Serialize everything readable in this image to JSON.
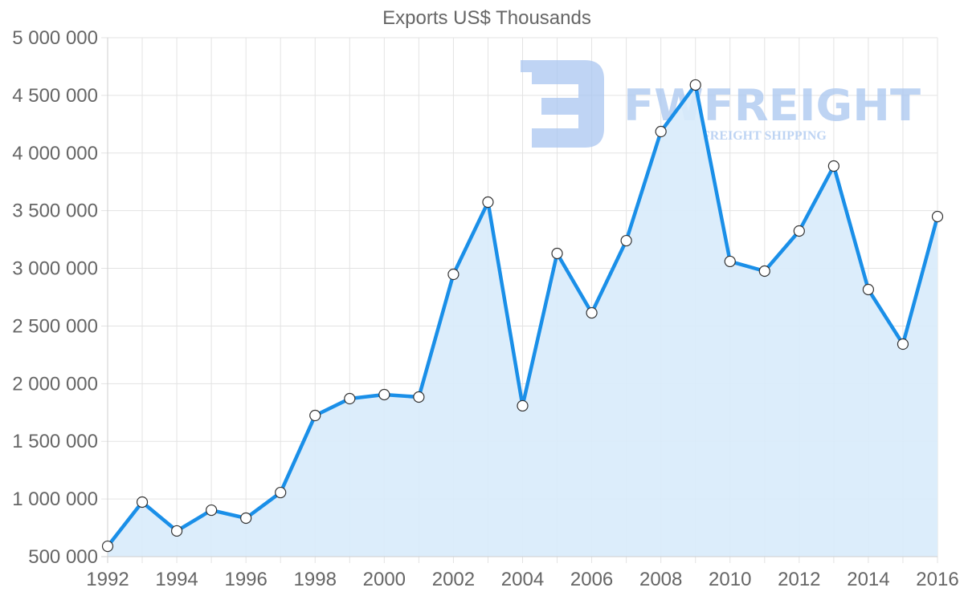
{
  "chart_data": {
    "type": "area",
    "title": "Exports US$ Thousands",
    "xlabel": "",
    "ylabel": "",
    "x": [
      1992,
      1993,
      1994,
      1995,
      1996,
      1997,
      1998,
      1999,
      2000,
      2001,
      2002,
      2003,
      2004,
      2005,
      2006,
      2007,
      2008,
      2009,
      2010,
      2011,
      2012,
      2013,
      2014,
      2015,
      2016
    ],
    "series": [
      {
        "name": "Exports US$ Thousands",
        "values": [
          590000,
          973000,
          723000,
          903000,
          834000,
          1056000,
          1724000,
          1870000,
          1905000,
          1884000,
          2948000,
          3574000,
          1808000,
          3129000,
          2614000,
          3240000,
          4186000,
          4590000,
          3060000,
          2976000,
          3324000,
          3887000,
          2816000,
          2343000,
          3449000
        ],
        "color": "#1a8fe8",
        "fill": "#d8ebfb"
      }
    ],
    "ylim": [
      500000,
      5000000
    ],
    "xlim": [
      1992,
      2016
    ],
    "y_ticks": [
      "5 000 000",
      "4 500 000",
      "4 000 000",
      "3 500 000",
      "3 000 000",
      "2 500 000",
      "2 000 000",
      "1 500 000",
      "1 000 000",
      "500 000"
    ],
    "y_tick_values": [
      5000000,
      4500000,
      4000000,
      3500000,
      3000000,
      2500000,
      2000000,
      1500000,
      1000000,
      500000
    ],
    "x_ticks": [
      "1992",
      "1994",
      "1996",
      "1998",
      "2000",
      "2002",
      "2004",
      "2006",
      "2008",
      "2010",
      "2012",
      "2014",
      "2016"
    ],
    "grid": true,
    "legend": null,
    "annotations": []
  },
  "watermark": {
    "brand": "FWFREIGHT",
    "tagline": "FREIGHT SHIPPING",
    "color": "#a9c6f0"
  }
}
